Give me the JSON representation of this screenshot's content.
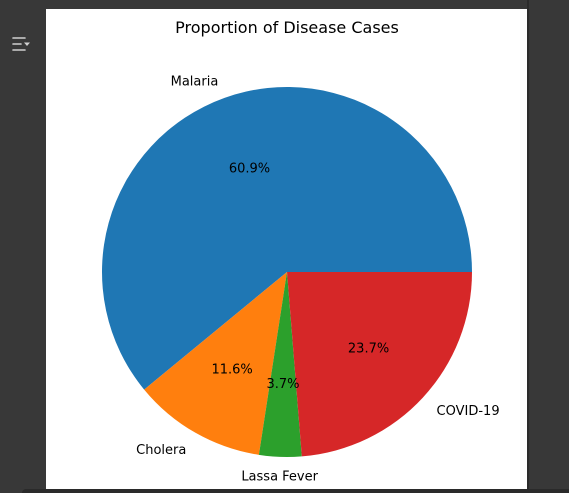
{
  "toolbar": {
    "menu_icon": "sidebar-toggle-icon"
  },
  "chart_data": {
    "type": "pie",
    "title": "Proportion of Disease Cases",
    "labels": [
      "Malaria",
      "Cholera",
      "Lassa Fever",
      "COVID-19"
    ],
    "values": [
      60.9,
      11.6,
      3.7,
      23.7
    ],
    "percent_labels": [
      "60.9%",
      "11.6%",
      "3.7%",
      "23.7%"
    ],
    "colors": [
      "#1f77b4",
      "#ff7f0e",
      "#2ca02c",
      "#d62728"
    ],
    "legend": "none"
  }
}
